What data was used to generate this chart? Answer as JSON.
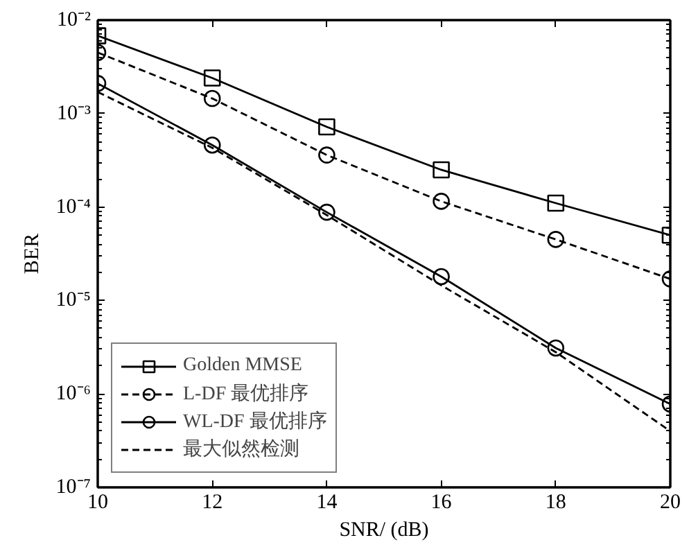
{
  "chart_data": {
    "type": "line",
    "xlabel": "SNR/ (dB)",
    "ylabel": "BER",
    "log": "y",
    "grid": false,
    "legend": "bottom left",
    "x": [
      10,
      12,
      14,
      16,
      18,
      20
    ],
    "xlim": [
      10,
      20
    ],
    "xticks": [
      10,
      12,
      14,
      16,
      18,
      20
    ],
    "ylim": [
      1e-07,
      0.01
    ],
    "yticks": [
      {
        "value": 1e-07,
        "label": "10⁻⁷"
      },
      {
        "value": 1e-06,
        "label": "10⁻⁶"
      },
      {
        "value": 1e-05,
        "label": "10⁻⁵"
      },
      {
        "value": 0.0001,
        "label": "10⁻⁴"
      },
      {
        "value": 0.001,
        "label": "10⁻³"
      },
      {
        "value": 0.01,
        "label": "10⁻²"
      }
    ],
    "series": [
      {
        "name": "Golden MMSE",
        "color": "#000000",
        "marker": "square",
        "line_style": "solid",
        "values": [
          0.0068,
          0.0024,
          0.00072,
          0.00025,
          0.00011,
          5e-05
        ]
      },
      {
        "name": "L-DF 最优排序",
        "color": "#000000",
        "marker": "circle",
        "line_style": "dashed",
        "values": [
          0.0045,
          0.00145,
          0.00036,
          0.000115,
          4.5e-05,
          1.7e-05
        ]
      },
      {
        "name": "WL-DF 最优排序",
        "color": "#000000",
        "marker": "circle",
        "line_style": "solid",
        "values": [
          0.0021,
          0.00046,
          8.8e-05,
          1.8e-05,
          3.1e-06,
          7.8e-07
        ]
      },
      {
        "name": "最大似然检测",
        "color": "#000000",
        "marker": "none",
        "line_style": "dashed",
        "values": [
          0.0017,
          0.00043,
          8.2e-05,
          1.45e-05,
          2.8e-06,
          4e-07
        ]
      }
    ]
  }
}
